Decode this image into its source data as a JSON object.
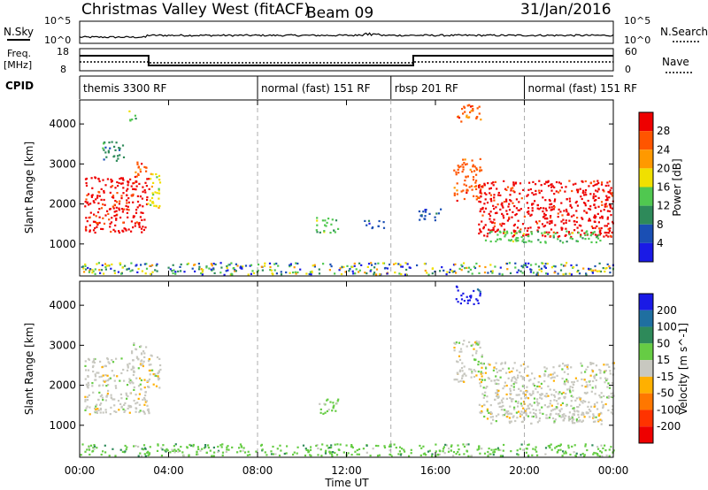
{
  "header": {
    "title": "Christmas Valley West (fitACF)",
    "beam": "Beam 09",
    "date": "31/Jan/2016"
  },
  "status_panels": {
    "nsky_label": "N.Sky",
    "nsearch_label": "N.Search",
    "noise_ticks_left": [
      "10^5",
      "10^0"
    ],
    "noise_ticks_right": [
      "10^5",
      "10^0"
    ],
    "freq_label": "Freq.",
    "freq_unit": "[MHz]",
    "freq_ticks": [
      "18",
      "8"
    ],
    "nave_label": "Nave",
    "nave_ticks": [
      "60",
      "0"
    ],
    "cpid_label": "CPID",
    "cpid_segments": [
      {
        "label": "themis 3300 RF",
        "start_hour": 0,
        "end_hour": 8
      },
      {
        "label": "normal (fast) 151 RF",
        "start_hour": 8,
        "end_hour": 14
      },
      {
        "label": "rbsp 201 RF",
        "start_hour": 14,
        "end_hour": 20
      },
      {
        "label": "normal (fast) 151 RF",
        "start_hour": 20,
        "end_hour": 24
      }
    ]
  },
  "x_axis": {
    "label": "Time UT",
    "ticks": [
      "00:00",
      "04:00",
      "08:00",
      "12:00",
      "16:00",
      "20:00",
      "00:00"
    ],
    "tick_hours": [
      0,
      4,
      8,
      12,
      16,
      20,
      24
    ],
    "range": [
      0,
      24
    ]
  },
  "colors": {
    "power": [
      "#1a1ae6",
      "#1a4fb4",
      "#2e8a5a",
      "#50c850",
      "#f0e000",
      "#ff9900",
      "#ff5500",
      "#ee0000"
    ],
    "velocity": [
      "#1a1ae6",
      "#1f6fa0",
      "#2e8a5a",
      "#66cc44",
      "#c8c8c0",
      "#ffb000",
      "#ff7700",
      "#ff3300",
      "#ee0000"
    ],
    "gray": "#c8c8c0"
  },
  "chart_data": [
    {
      "type": "heatmap",
      "ylabel": "Slant Range [km]",
      "ylim": [
        200,
        4600
      ],
      "yticks": [
        "1000",
        "2000",
        "3000",
        "4000"
      ],
      "ytick_values": [
        1000,
        2000,
        3000,
        4000
      ],
      "colorbar_label": "Power [dB]",
      "colorbar_ticks": [
        "4",
        "8",
        "12",
        "16",
        "20",
        "24",
        "28"
      ],
      "colorbar_values": [
        4,
        8,
        12,
        16,
        20,
        24,
        28
      ],
      "regions": [
        {
          "t0": 0.2,
          "t1": 3.1,
          "r0": 1300,
          "r1": 2700,
          "level": 7
        },
        {
          "t0": 2.3,
          "t1": 3.0,
          "r0": 2700,
          "r1": 3100,
          "level": 6
        },
        {
          "t0": 3.0,
          "t1": 3.6,
          "r0": 1900,
          "r1": 2800,
          "level": 4
        },
        {
          "t0": 2.1,
          "t1": 2.5,
          "r0": 4100,
          "r1": 4350,
          "level": 3
        },
        {
          "t0": 1.0,
          "t1": 2.0,
          "r0": 3100,
          "r1": 3600,
          "level": 2
        },
        {
          "t0": 10.6,
          "t1": 11.6,
          "r0": 1300,
          "r1": 1700,
          "level": 3
        },
        {
          "t0": 12.7,
          "t1": 13.7,
          "r0": 1400,
          "r1": 1600,
          "level": 1
        },
        {
          "t0": 16.8,
          "t1": 18.1,
          "r0": 2100,
          "r1": 3150,
          "level": 6
        },
        {
          "t0": 17.9,
          "t1": 24.0,
          "r0": 1200,
          "r1": 2600,
          "level": 7
        },
        {
          "t0": 18.2,
          "t1": 23.5,
          "r0": 1050,
          "r1": 1350,
          "level": 3
        },
        {
          "t0": 16.9,
          "t1": 18.0,
          "r0": 4050,
          "r1": 4500,
          "level": 6
        },
        {
          "t0": 15.2,
          "t1": 16.3,
          "r0": 1600,
          "r1": 1900,
          "level": 1
        },
        {
          "t0": 0.0,
          "t1": 24.0,
          "r0": 250,
          "r1": 550,
          "level": 0
        }
      ]
    },
    {
      "type": "heatmap",
      "ylabel": "Slant Range [km]",
      "ylim": [
        200,
        4600
      ],
      "yticks": [
        "1000",
        "2000",
        "3000",
        "4000"
      ],
      "ytick_values": [
        1000,
        2000,
        3000,
        4000
      ],
      "colorbar_label": "Velocity [m s^-1]",
      "colorbar_ticks": [
        "200",
        "100",
        "50",
        "15",
        "-15",
        "-50",
        "-100",
        "-200"
      ],
      "colorbar_values": [
        200,
        100,
        50,
        15,
        -15,
        -50,
        -100,
        -200
      ],
      "regions": [
        {
          "t0": 0.2,
          "t1": 3.1,
          "r0": 1300,
          "r1": 2700,
          "level": 4
        },
        {
          "t0": 2.3,
          "t1": 3.0,
          "r0": 2700,
          "r1": 3100,
          "level": 4
        },
        {
          "t0": 3.0,
          "t1": 3.6,
          "r0": 1900,
          "r1": 2800,
          "level": 4
        },
        {
          "t0": 10.6,
          "t1": 11.6,
          "r0": 1300,
          "r1": 1700,
          "level": 3
        },
        {
          "t0": 16.8,
          "t1": 18.1,
          "r0": 2100,
          "r1": 3150,
          "level": 4
        },
        {
          "t0": 17.9,
          "t1": 24.0,
          "r0": 1200,
          "r1": 2600,
          "level": 4
        },
        {
          "t0": 18.2,
          "t1": 23.5,
          "r0": 1050,
          "r1": 1350,
          "level": 4
        },
        {
          "t0": 16.9,
          "t1": 18.0,
          "r0": 4050,
          "r1": 4500,
          "level": 0
        },
        {
          "t0": 0.0,
          "t1": 24.0,
          "r0": 250,
          "r1": 550,
          "level": 3
        }
      ]
    }
  ]
}
